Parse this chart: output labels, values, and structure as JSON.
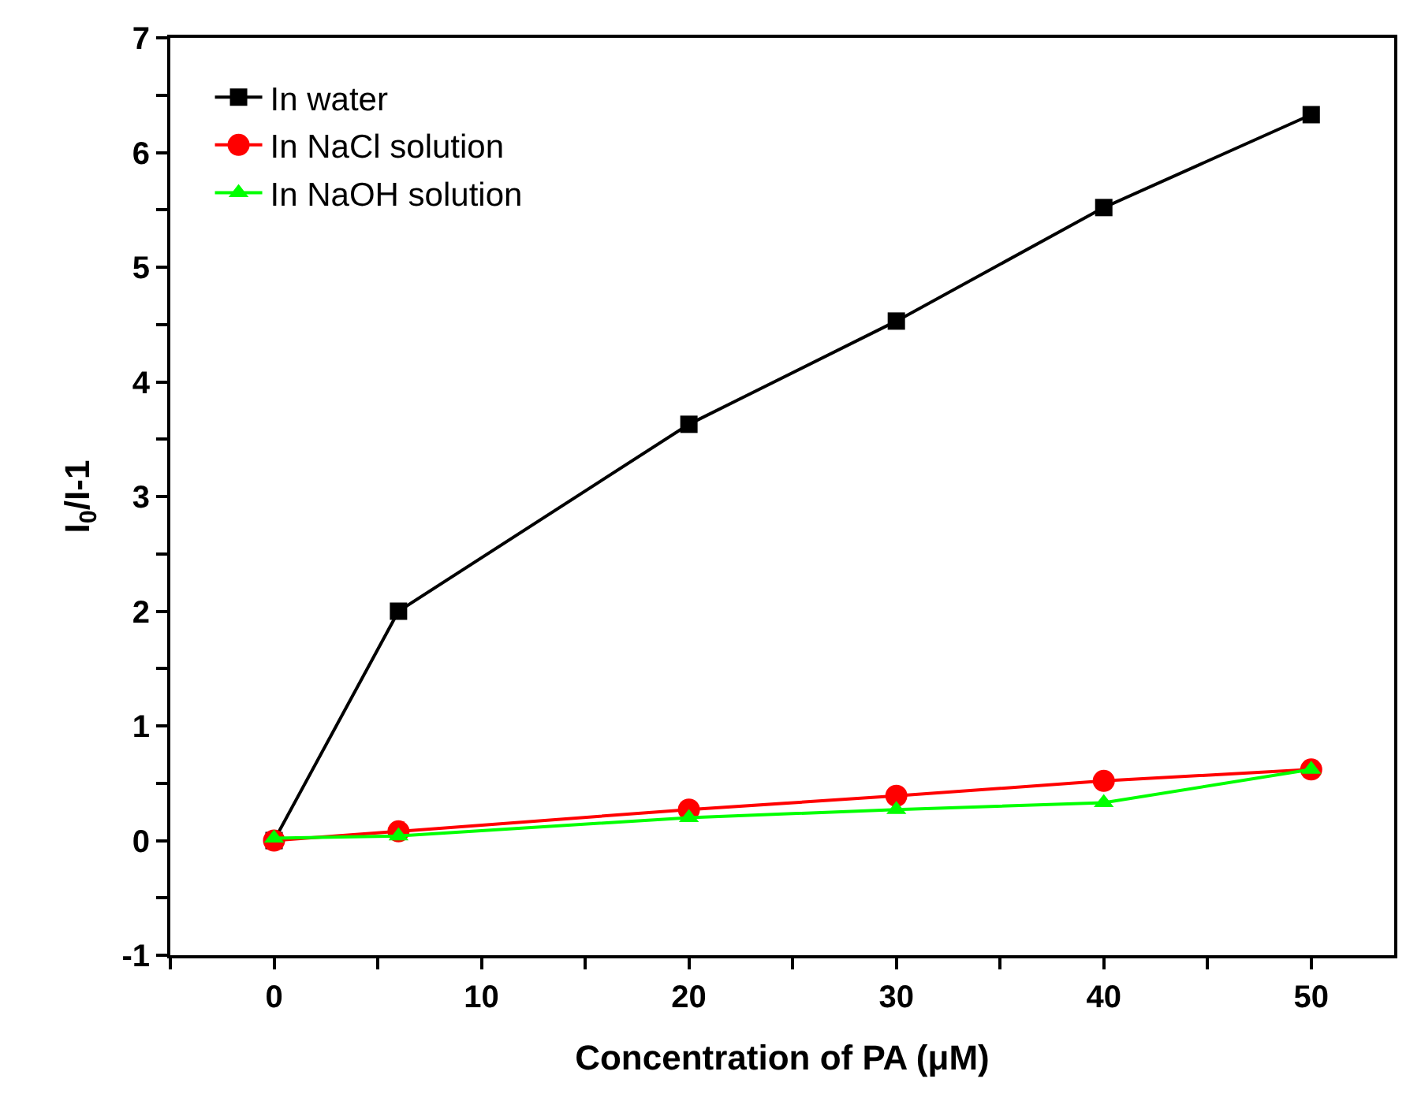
{
  "chart_data": {
    "type": "line",
    "xlabel": "Concentration of PA (μM)",
    "ylabel": "I$_{0}$/I-1",
    "x": [
      0,
      6,
      20,
      30,
      40,
      50
    ],
    "series": [
      {
        "name": "In water",
        "color": "#000000",
        "marker": "square",
        "values": [
          0,
          2.0,
          3.63,
          4.53,
          5.52,
          6.33
        ]
      },
      {
        "name": "In NaCl solution",
        "color": "#ff0000",
        "marker": "circle",
        "values": [
          0,
          0.08,
          0.27,
          0.39,
          0.52,
          0.62
        ]
      },
      {
        "name": "In NaOH solution",
        "color": "#00ff00",
        "marker": "triangle",
        "values": [
          0.02,
          0.04,
          0.2,
          0.27,
          0.33,
          0.62
        ]
      }
    ],
    "xlim": [
      -5,
      54
    ],
    "xticks": [
      {
        "value": -5,
        "label": null
      },
      0,
      {
        "value": 5,
        "label": null
      },
      10,
      {
        "value": 15,
        "label": null
      },
      20,
      {
        "value": 25,
        "label": null
      },
      30,
      {
        "value": 35,
        "label": null
      },
      40,
      {
        "value": 45,
        "label": null
      },
      50
    ],
    "ylim": [
      -1,
      7
    ],
    "yticks": [
      -1,
      {
        "value": -0.5,
        "label": null
      },
      0,
      {
        "value": 0.5,
        "label": null
      },
      1,
      {
        "value": 1.5,
        "label": null
      },
      2,
      {
        "value": 2.5,
        "label": null
      },
      3,
      {
        "value": 3.5,
        "label": null
      },
      4,
      {
        "value": 4.5,
        "label": null
      },
      5,
      {
        "value": 5.5,
        "label": null
      },
      6,
      {
        "value": 6.5,
        "label": null
      },
      7
    ],
    "grid": false,
    "legend": "top left",
    "line_style": "solid"
  }
}
